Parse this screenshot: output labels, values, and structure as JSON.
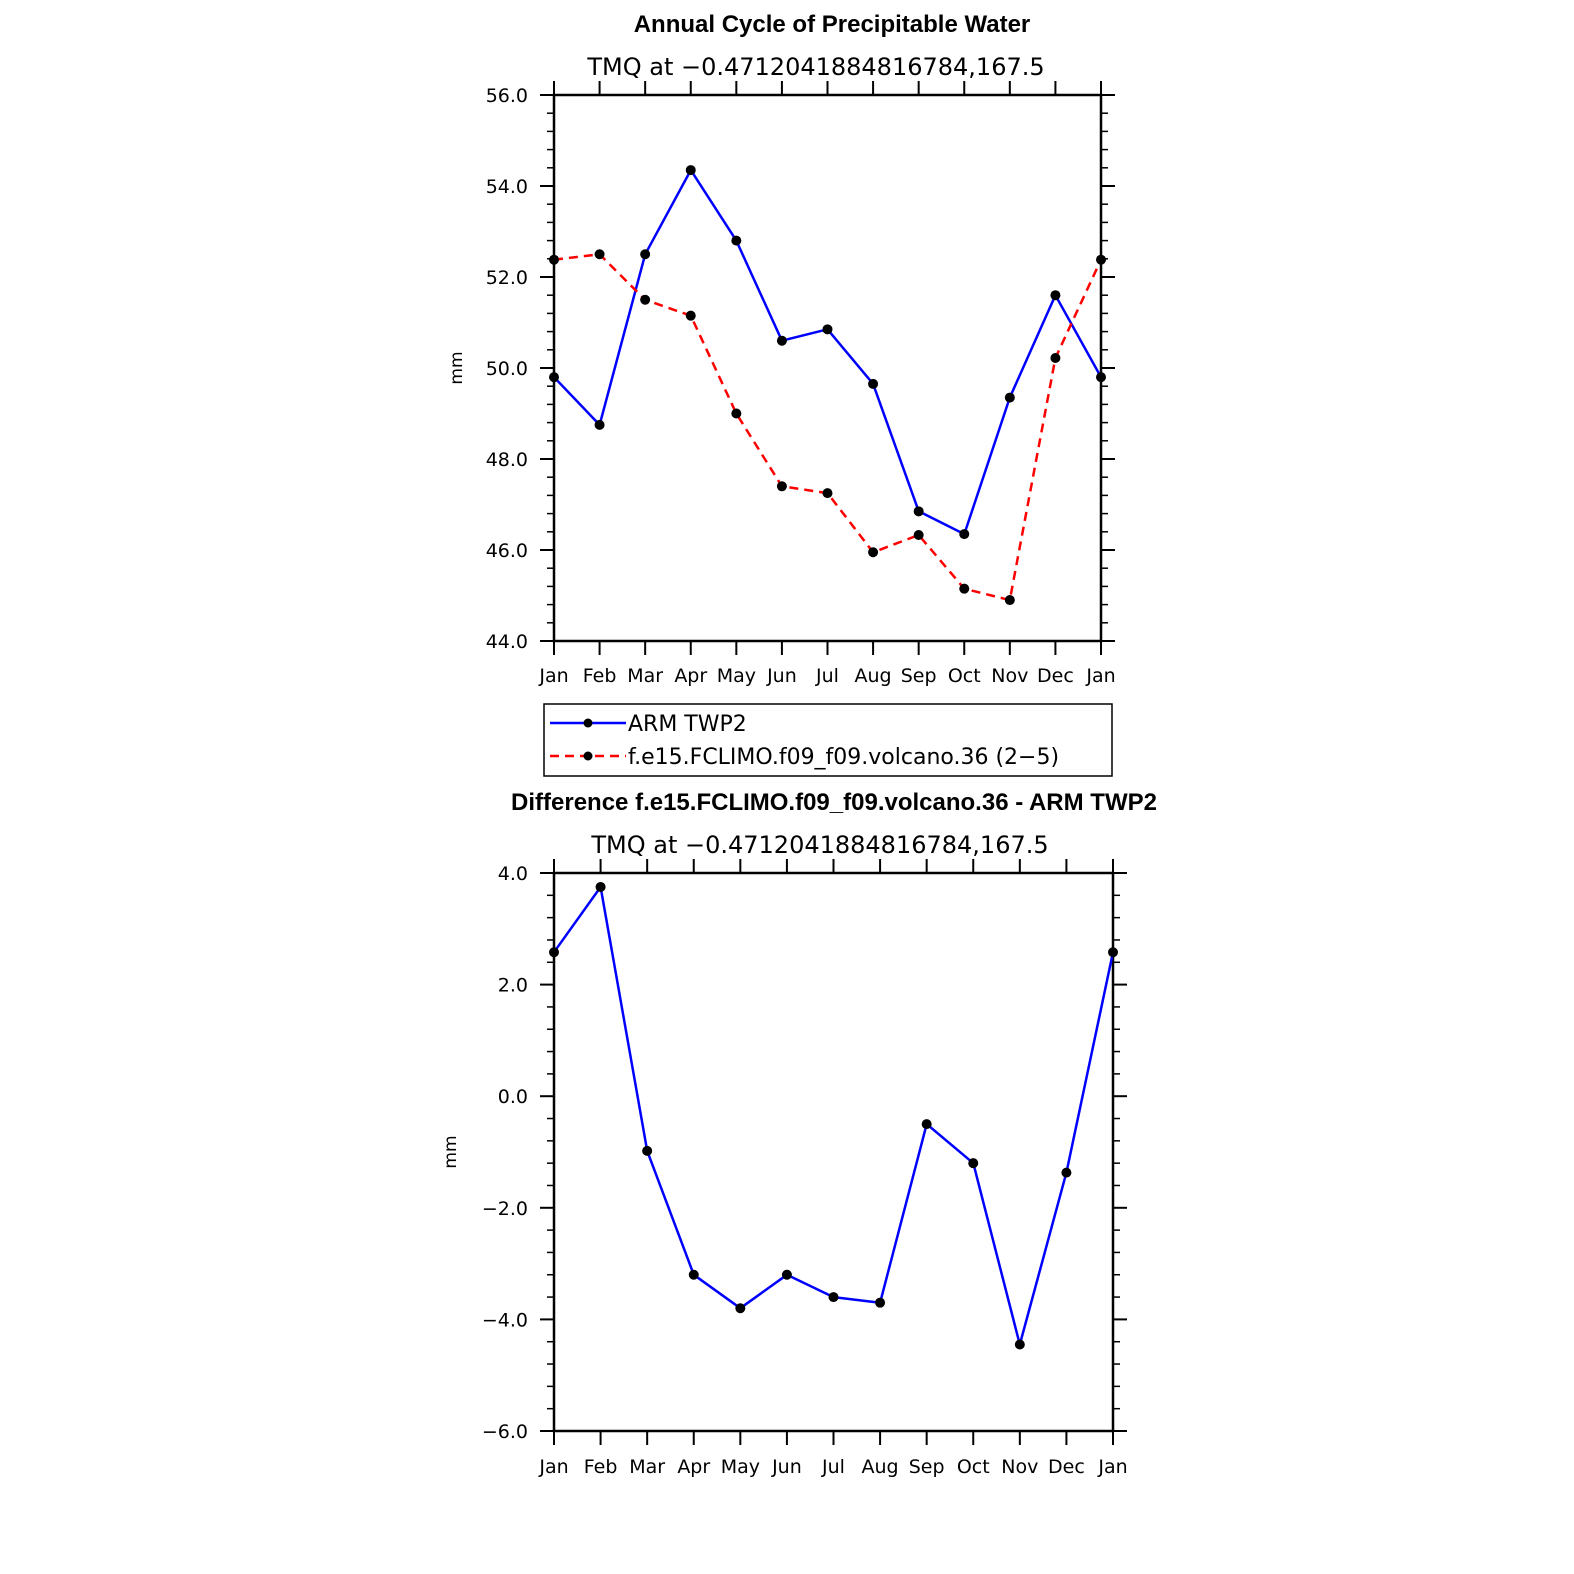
{
  "chart_data": [
    {
      "type": "line",
      "title": "Annual Cycle of Precipitable Water",
      "subtitle": "TMQ at −0.4712041884816784,167.5",
      "ylabel": "mm",
      "xlabel": "",
      "categories": [
        "Jan",
        "Feb",
        "Mar",
        "Apr",
        "May",
        "Jun",
        "Jul",
        "Aug",
        "Sep",
        "Oct",
        "Nov",
        "Dec",
        "Jan"
      ],
      "ylim": [
        44.0,
        56.0
      ],
      "yticks": [
        44.0,
        46.0,
        48.0,
        50.0,
        52.0,
        54.0,
        56.0
      ],
      "ytick_labels": [
        "44.0",
        "46.0",
        "48.0",
        "50.0",
        "52.0",
        "54.0",
        "56.0"
      ],
      "grid": false,
      "legend_position": "below",
      "series": [
        {
          "name": "ARM TWP2",
          "color": "#0000ff",
          "dash": "solid",
          "values": [
            49.8,
            48.75,
            52.5,
            54.35,
            52.8,
            50.6,
            50.85,
            49.65,
            46.85,
            46.35,
            49.35,
            51.6,
            49.8
          ]
        },
        {
          "name": "f.e15.FCLIMO.f09_f09.volcano.36 (2−5)",
          "color": "#ff0000",
          "dash": "dashed",
          "values": [
            52.38,
            52.5,
            51.5,
            51.15,
            49.0,
            47.4,
            47.25,
            45.95,
            46.33,
            45.15,
            44.9,
            50.22,
            52.38
          ]
        }
      ]
    },
    {
      "type": "line",
      "title": "Difference f.e15.FCLIMO.f09_f09.volcano.36 - ARM TWP2",
      "subtitle": "TMQ at −0.4712041884816784,167.5",
      "ylabel": "mm",
      "xlabel": "",
      "categories": [
        "Jan",
        "Feb",
        "Mar",
        "Apr",
        "May",
        "Jun",
        "Jul",
        "Aug",
        "Sep",
        "Oct",
        "Nov",
        "Dec",
        "Jan"
      ],
      "ylim": [
        -6.0,
        4.0
      ],
      "yticks": [
        -6.0,
        -4.0,
        -2.0,
        0.0,
        2.0,
        4.0
      ],
      "ytick_labels": [
        "−6.0",
        "−4.0",
        "−2.0",
        "0.0",
        "2.0",
        "4.0"
      ],
      "grid": false,
      "series": [
        {
          "color": "#0000ff",
          "dash": "solid",
          "values": [
            2.58,
            3.75,
            -0.98,
            -3.2,
            -3.8,
            -3.2,
            -3.6,
            -3.7,
            -0.5,
            -1.2,
            -4.45,
            -1.37,
            2.58
          ]
        }
      ]
    }
  ]
}
